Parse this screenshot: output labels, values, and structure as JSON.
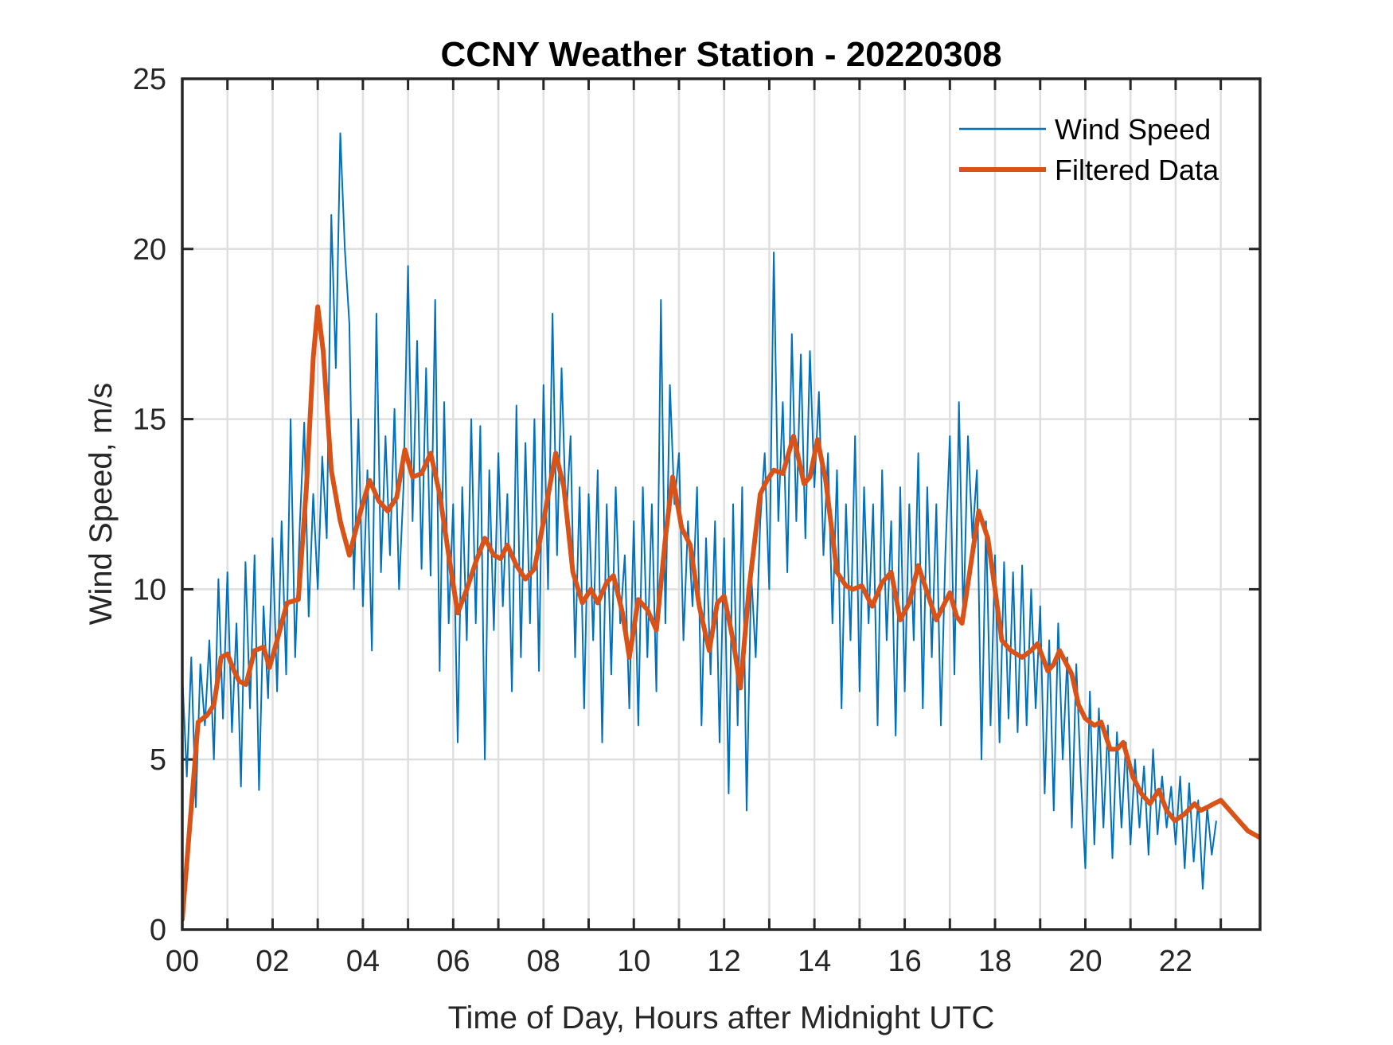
{
  "chart_data": {
    "type": "line",
    "title": "CCNY Weather Station - 20220308",
    "xlabel": "Time of Day, Hours after Midnight UTC",
    "ylabel": "Wind Speed, m/s",
    "xlim": [
      0,
      23.87
    ],
    "ylim": [
      0,
      25
    ],
    "grid": true,
    "legend_position": "top-right",
    "xticks": [
      0,
      1,
      2,
      3,
      4,
      5,
      6,
      7,
      8,
      9,
      10,
      11,
      12,
      13,
      14,
      15,
      16,
      17,
      18,
      19,
      20,
      21,
      22,
      23
    ],
    "xtick_labels": [
      {
        "value": 0,
        "label": "00"
      },
      {
        "value": 2,
        "label": "02"
      },
      {
        "value": 4,
        "label": "04"
      },
      {
        "value": 6,
        "label": "06"
      },
      {
        "value": 8,
        "label": "08"
      },
      {
        "value": 10,
        "label": "10"
      },
      {
        "value": 12,
        "label": "12"
      },
      {
        "value": 14,
        "label": "14"
      },
      {
        "value": 16,
        "label": "16"
      },
      {
        "value": 18,
        "label": "18"
      },
      {
        "value": 20,
        "label": "20"
      },
      {
        "value": 22,
        "label": "22"
      }
    ],
    "yticks": [
      0,
      5,
      10,
      15,
      20,
      25
    ],
    "ytick_labels": [
      "0",
      "5",
      "10",
      "15",
      "20",
      "25"
    ],
    "series": [
      {
        "name": "Wind Speed",
        "color": "#0072bd",
        "x_start": 0,
        "x_step": 0.1,
        "values": [
          7.5,
          4.5,
          8.0,
          3.6,
          7.8,
          6.0,
          8.5,
          5.0,
          10.3,
          6.2,
          10.5,
          5.8,
          9.0,
          4.2,
          10.8,
          6.5,
          11.0,
          4.1,
          9.5,
          6.8,
          11.5,
          7.0,
          12.0,
          7.5,
          15.0,
          8.0,
          11.8,
          14.9,
          9.2,
          12.8,
          10.0,
          13.9,
          11.5,
          21.0,
          16.5,
          23.4,
          20.0,
          17.8,
          10.0,
          15.0,
          9.5,
          13.5,
          8.2,
          18.1,
          10.5,
          14.5,
          11.0,
          15.3,
          10.0,
          13.0,
          19.5,
          12.0,
          17.3,
          10.6,
          16.5,
          10.4,
          18.5,
          7.6,
          15.5,
          9.0,
          12.5,
          5.5,
          13.0,
          8.5,
          15.0,
          9.0,
          14.8,
          5.0,
          13.5,
          8.8,
          14.0,
          9.5,
          12.8,
          7.0,
          15.4,
          8.0,
          14.3,
          9.0,
          15.0,
          7.6,
          16.0,
          10.0,
          18.1,
          11.0,
          16.5,
          12.0,
          14.5,
          8.0,
          13.0,
          6.5,
          12.8,
          8.5,
          13.5,
          5.5,
          12.5,
          7.5,
          13.0,
          9.0,
          11.0,
          6.5,
          12.0,
          6.0,
          13.0,
          8.0,
          12.5,
          7.0,
          18.5,
          9.0,
          16.0,
          12.5,
          14.0,
          8.5,
          12.0,
          9.5,
          13.0,
          6.0,
          11.5,
          7.5,
          12.0,
          5.5,
          11.5,
          4.0,
          12.5,
          6.0,
          13.0,
          3.5,
          10.5,
          8.0,
          12.0,
          14.0,
          10.0,
          19.9,
          12.0,
          15.5,
          10.5,
          17.5,
          12.0,
          16.9,
          11.5,
          17.0,
          13.0,
          15.8,
          11.0,
          14.0,
          9.0,
          13.5,
          6.5,
          12.5,
          8.5,
          14.5,
          7.0,
          13.0,
          9.0,
          12.5,
          6.0,
          13.5,
          8.5,
          12.0,
          5.7,
          13.0,
          7.0,
          12.5,
          8.5,
          14.0,
          6.5,
          13.0,
          8.0,
          12.5,
          6.0,
          11.0,
          14.5,
          7.5,
          15.5,
          9.0,
          14.5,
          11.5,
          13.5,
          5.0,
          12.0,
          6.0,
          11.0,
          5.5,
          10.8,
          6.2,
          10.5,
          5.8,
          10.7,
          6.0,
          10.0,
          6.5,
          9.5,
          4.0,
          8.5,
          3.5,
          9.0,
          5.0,
          8.0,
          3.0,
          7.8,
          4.5,
          1.8,
          7.0,
          2.5,
          6.5,
          3.0,
          6.0,
          2.1,
          5.8,
          3.0,
          5.5,
          2.5,
          5.0,
          3.0,
          4.8,
          2.2,
          5.3,
          2.8,
          4.5,
          3.0,
          4.2,
          2.5,
          4.5,
          1.8,
          4.3,
          2.0,
          3.8,
          1.2,
          3.6,
          2.2,
          3.2
        ]
      },
      {
        "name": "Filtered Data",
        "color": "#d95319",
        "points": [
          [
            0,
            0.3
          ],
          [
            0.2,
            3.6
          ],
          [
            0.35,
            6.1
          ],
          [
            0.55,
            6.3
          ],
          [
            0.7,
            6.6
          ],
          [
            0.86,
            8.0
          ],
          [
            1.0,
            8.1
          ],
          [
            1.15,
            7.6
          ],
          [
            1.26,
            7.3
          ],
          [
            1.41,
            7.2
          ],
          [
            1.6,
            8.2
          ],
          [
            1.8,
            8.3
          ],
          [
            1.93,
            7.7
          ],
          [
            2.12,
            8.6
          ],
          [
            2.32,
            9.6
          ],
          [
            2.57,
            9.7
          ],
          [
            2.75,
            13.0
          ],
          [
            2.9,
            16.8
          ],
          [
            3.0,
            18.3
          ],
          [
            3.12,
            17.0
          ],
          [
            3.3,
            13.5
          ],
          [
            3.5,
            12.0
          ],
          [
            3.7,
            11.0
          ],
          [
            3.95,
            12.3
          ],
          [
            4.15,
            13.2
          ],
          [
            4.35,
            12.6
          ],
          [
            4.55,
            12.3
          ],
          [
            4.75,
            12.7
          ],
          [
            4.93,
            14.1
          ],
          [
            5.1,
            13.3
          ],
          [
            5.3,
            13.4
          ],
          [
            5.5,
            14.0
          ],
          [
            5.7,
            12.8
          ],
          [
            5.9,
            11.0
          ],
          [
            6.1,
            9.3
          ],
          [
            6.3,
            10.0
          ],
          [
            6.5,
            10.8
          ],
          [
            6.7,
            11.5
          ],
          [
            6.9,
            11.0
          ],
          [
            7.05,
            10.9
          ],
          [
            7.2,
            11.3
          ],
          [
            7.4,
            10.7
          ],
          [
            7.6,
            10.3
          ],
          [
            7.8,
            10.6
          ],
          [
            8.0,
            12.0
          ],
          [
            8.27,
            14.0
          ],
          [
            8.45,
            13.0
          ],
          [
            8.65,
            10.5
          ],
          [
            8.86,
            9.6
          ],
          [
            9.05,
            10.0
          ],
          [
            9.2,
            9.6
          ],
          [
            9.4,
            10.2
          ],
          [
            9.55,
            10.4
          ],
          [
            9.75,
            9.3
          ],
          [
            9.9,
            8.0
          ],
          [
            10.1,
            9.7
          ],
          [
            10.3,
            9.4
          ],
          [
            10.5,
            8.8
          ],
          [
            10.7,
            11.5
          ],
          [
            10.86,
            13.3
          ],
          [
            11.06,
            11.8
          ],
          [
            11.25,
            11.3
          ],
          [
            11.45,
            9.5
          ],
          [
            11.67,
            8.2
          ],
          [
            11.85,
            9.6
          ],
          [
            12.0,
            9.8
          ],
          [
            12.2,
            8.5
          ],
          [
            12.36,
            7.1
          ],
          [
            12.55,
            10.0
          ],
          [
            12.8,
            12.8
          ],
          [
            12.95,
            13.2
          ],
          [
            13.1,
            13.5
          ],
          [
            13.3,
            13.4
          ],
          [
            13.54,
            14.5
          ],
          [
            13.77,
            13.1
          ],
          [
            13.9,
            13.3
          ],
          [
            14.07,
            14.4
          ],
          [
            14.25,
            13.2
          ],
          [
            14.5,
            10.5
          ],
          [
            14.7,
            10.1
          ],
          [
            14.85,
            10.0
          ],
          [
            15.05,
            10.1
          ],
          [
            15.28,
            9.5
          ],
          [
            15.5,
            10.2
          ],
          [
            15.7,
            10.5
          ],
          [
            15.9,
            9.1
          ],
          [
            16.1,
            9.6
          ],
          [
            16.3,
            10.7
          ],
          [
            16.5,
            9.9
          ],
          [
            16.7,
            9.1
          ],
          [
            16.85,
            9.5
          ],
          [
            17.0,
            9.9
          ],
          [
            17.15,
            9.2
          ],
          [
            17.27,
            9.0
          ],
          [
            17.45,
            10.6
          ],
          [
            17.64,
            12.3
          ],
          [
            17.84,
            11.5
          ],
          [
            18.0,
            10.0
          ],
          [
            18.15,
            8.5
          ],
          [
            18.35,
            8.2
          ],
          [
            18.6,
            8.0
          ],
          [
            18.8,
            8.2
          ],
          [
            18.94,
            8.4
          ],
          [
            19.17,
            7.6
          ],
          [
            19.3,
            7.8
          ],
          [
            19.43,
            8.2
          ],
          [
            19.7,
            7.5
          ],
          [
            19.85,
            6.6
          ],
          [
            20.0,
            6.2
          ],
          [
            20.2,
            6.0
          ],
          [
            20.35,
            6.1
          ],
          [
            20.55,
            5.3
          ],
          [
            20.7,
            5.3
          ],
          [
            20.84,
            5.5
          ],
          [
            21.05,
            4.5
          ],
          [
            21.24,
            4.0
          ],
          [
            21.43,
            3.7
          ],
          [
            21.63,
            4.1
          ],
          [
            21.8,
            3.5
          ],
          [
            21.98,
            3.2
          ],
          [
            22.2,
            3.4
          ],
          [
            22.42,
            3.7
          ],
          [
            22.55,
            3.5
          ],
          [
            22.71,
            3.6
          ],
          [
            22.85,
            3.7
          ],
          [
            23.0,
            3.8
          ],
          [
            23.2,
            3.5
          ],
          [
            23.4,
            3.2
          ],
          [
            23.6,
            2.9
          ],
          [
            23.87,
            2.7
          ]
        ]
      }
    ]
  }
}
